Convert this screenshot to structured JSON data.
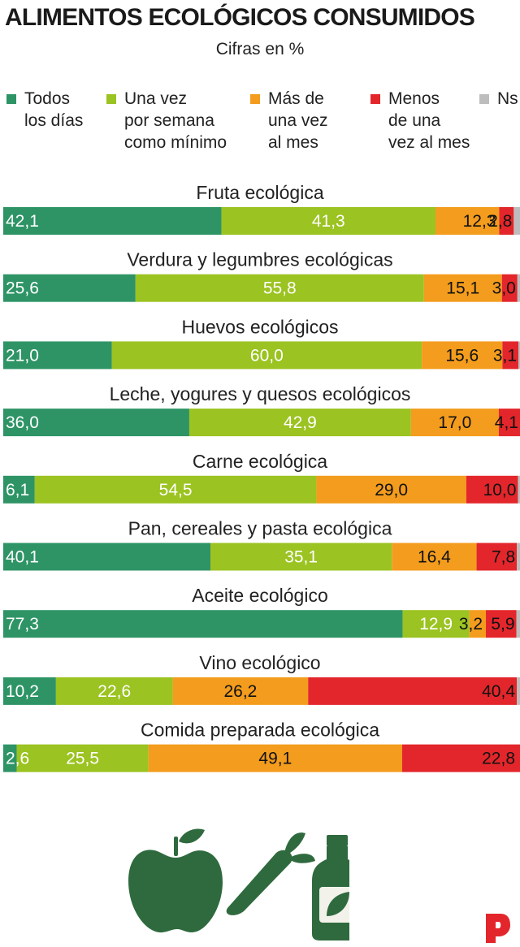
{
  "title": "ALIMENTOS ECOLÓGICOS CONSUMIDOS",
  "subtitle": "Cifras en %",
  "legend": [
    {
      "label": "Todos los días",
      "lines": [
        "Todos",
        "los días"
      ],
      "color": "#2e9466"
    },
    {
      "label": "Una vez por semana como mínimo",
      "lines": [
        "Una vez",
        "por semana",
        "como mínimo"
      ],
      "color": "#9bc321"
    },
    {
      "label": "Más de una vez al mes",
      "lines": [
        "Más de",
        "una vez",
        "al mes"
      ],
      "color": "#f39c1d"
    },
    {
      "label": "Menos de una vez al mes",
      "lines": [
        "Menos",
        "de una",
        "vez al mes"
      ],
      "color": "#e3262b"
    },
    {
      "label": "Ns",
      "lines": [
        "Ns"
      ],
      "color": "#bdbdbd"
    }
  ],
  "chart_data": {
    "type": "bar",
    "orientation": "horizontal",
    "stacked": true,
    "categories": [
      "Fruta ecológica",
      "Verdura y legumbres ecológicas",
      "Huevos ecológicos",
      "Leche, yogures y quesos ecológicos",
      "Carne ecológica",
      "Pan, cereales y pasta ecológica",
      "Aceite ecológico",
      "Vino ecológico",
      "Comida preparada ecológica"
    ],
    "series": [
      {
        "name": "Todos los días",
        "color": "#2e9466",
        "values": [
          42.1,
          25.6,
          21.0,
          36.0,
          6.1,
          40.1,
          77.3,
          10.2,
          2.6
        ],
        "labels": [
          "42,1",
          "25,6",
          "21,0",
          "36,0",
          "6,1",
          "40,1",
          "77,3",
          "10,2",
          "2,6"
        ]
      },
      {
        "name": "Una vez por semana como mínimo",
        "color": "#9bc321",
        "values": [
          41.3,
          55.8,
          60.0,
          42.9,
          54.5,
          35.1,
          12.9,
          22.6,
          25.5
        ],
        "labels": [
          "41,3",
          "55,8",
          "60,0",
          "42,9",
          "54,5",
          "35,1",
          "12,9",
          "22,6",
          "25,5"
        ]
      },
      {
        "name": "Más de una vez al mes",
        "color": "#f39c1d",
        "values": [
          12.3,
          15.1,
          15.6,
          17.0,
          29.0,
          16.4,
          3.2,
          26.2,
          49.1
        ],
        "labels": [
          "12,3",
          "15,1",
          "15,6",
          "17,0",
          "29,0",
          "16,4",
          "3,2",
          "26,2",
          "49,1"
        ]
      },
      {
        "name": "Menos de una vez al mes",
        "color": "#e3262b",
        "values": [
          2.8,
          3.0,
          3.1,
          4.1,
          10.0,
          7.8,
          5.9,
          40.4,
          22.8
        ],
        "labels": [
          "2,8",
          "3,0",
          "3,1",
          "4,1",
          "10,0",
          "7,8",
          "5,9",
          "40,4",
          "22,8"
        ]
      },
      {
        "name": "Ns",
        "color": "#bdbdbd",
        "values": [
          1.2,
          0.5,
          0.3,
          0,
          0.4,
          0.6,
          0.7,
          0.6,
          0
        ],
        "labels": [
          "",
          "",
          "",
          "",
          "",
          "",
          "",
          "",
          ""
        ]
      }
    ],
    "xlim": [
      0,
      100
    ]
  }
}
